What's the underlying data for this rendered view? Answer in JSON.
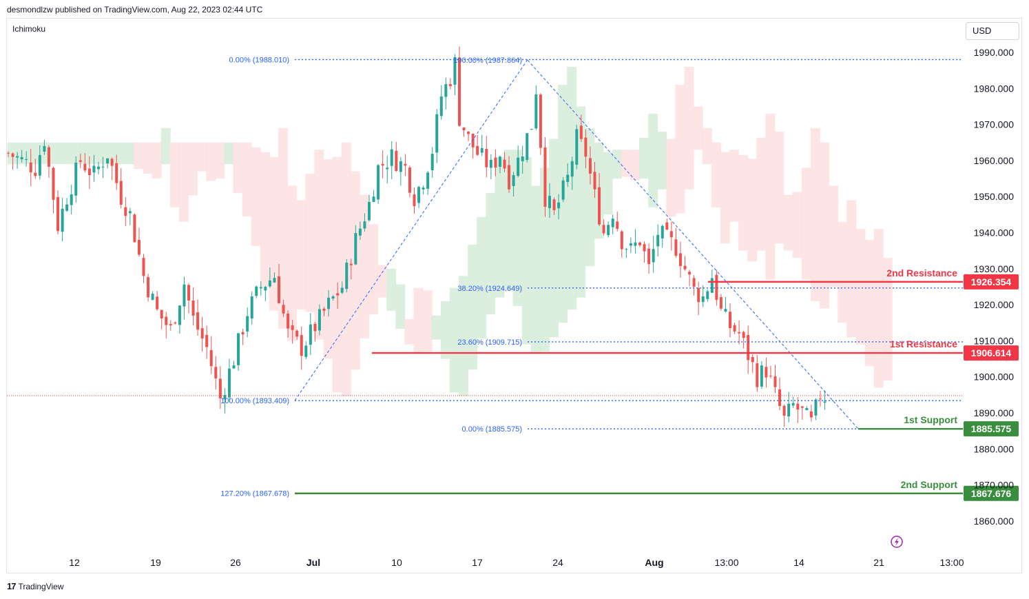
{
  "header": {
    "published_by": "desmondlzw published on TradingView.com, Aug 22, 2023 02:44 UTC",
    "indicator": "Ichimoku",
    "currency": "USD",
    "footer_brand": "TradingView",
    "footer_logo": "17"
  },
  "chart_data": {
    "type": "candlestick",
    "title": "",
    "ylabel": "USD",
    "ylim": [
      1853,
      1998
    ],
    "y_ticks": [
      1990,
      1980,
      1970,
      1960,
      1950,
      1940,
      1930,
      1920,
      1910,
      1900,
      1890,
      1880,
      1870,
      1860
    ],
    "y_tick_labels": [
      "1990.000",
      "1980.000",
      "1970.000",
      "1960.000",
      "1950.000",
      "1940.000",
      "1930.000",
      "1920.000",
      "1910.000",
      "1900.000",
      "1890.000",
      "1880.000",
      "1870.000",
      "1860.000"
    ],
    "x_ticks": [
      {
        "label": "12",
        "bold": false
      },
      {
        "label": "19",
        "bold": false
      },
      {
        "label": "26",
        "bold": false
      },
      {
        "label": "Jul",
        "bold": true
      },
      {
        "label": "10",
        "bold": false
      },
      {
        "label": "17",
        "bold": false
      },
      {
        "label": "24",
        "bold": false
      },
      {
        "label": "Aug",
        "bold": true
      },
      {
        "label": "13:00",
        "bold": false
      },
      {
        "label": "14",
        "bold": false
      },
      {
        "label": "21",
        "bold": false
      },
      {
        "label": "13:00",
        "bold": false
      }
    ],
    "price_path": [
      [
        0,
        1962
      ],
      [
        6,
        1958
      ],
      [
        8,
        1966
      ],
      [
        11,
        1942
      ],
      [
        13,
        1950
      ],
      [
        16,
        1960
      ],
      [
        19,
        1956
      ],
      [
        22,
        1962
      ],
      [
        25,
        1950
      ],
      [
        27,
        1945
      ],
      [
        30,
        1928
      ],
      [
        33,
        1918
      ],
      [
        36,
        1913
      ],
      [
        39,
        1926
      ],
      [
        41,
        1916
      ],
      [
        44,
        1908
      ],
      [
        47,
        1894
      ],
      [
        50,
        1905
      ],
      [
        53,
        1918
      ],
      [
        56,
        1925
      ],
      [
        59,
        1928
      ],
      [
        62,
        1912
      ],
      [
        65,
        1908
      ],
      [
        68,
        1914
      ],
      [
        71,
        1920
      ],
      [
        74,
        1925
      ],
      [
        77,
        1938
      ],
      [
        80,
        1948
      ],
      [
        82,
        1958
      ],
      [
        85,
        1961
      ],
      [
        88,
        1958
      ],
      [
        90,
        1950
      ],
      [
        92,
        1955
      ],
      [
        94,
        1963
      ],
      [
        96,
        1978
      ],
      [
        98,
        1983
      ],
      [
        99,
        1987
      ],
      [
        100,
        1972
      ],
      [
        102,
        1966
      ],
      [
        104,
        1962
      ],
      [
        107,
        1958
      ],
      [
        109,
        1962
      ],
      [
        111,
        1955
      ],
      [
        113,
        1960
      ],
      [
        116,
        1970
      ],
      [
        117,
        1980
      ],
      [
        119,
        1950
      ],
      [
        121,
        1945
      ],
      [
        124,
        1955
      ],
      [
        126,
        1966
      ],
      [
        128,
        1962
      ],
      [
        130,
        1950
      ],
      [
        132,
        1940
      ],
      [
        134,
        1946
      ],
      [
        136,
        1938
      ],
      [
        138,
        1935
      ],
      [
        140,
        1938
      ],
      [
        142,
        1930
      ],
      [
        144,
        1940
      ],
      [
        146,
        1938
      ],
      [
        148,
        1936
      ],
      [
        150,
        1930
      ],
      [
        152,
        1924
      ],
      [
        154,
        1922
      ],
      [
        156,
        1928
      ],
      [
        158,
        1918
      ],
      [
        160,
        1914
      ],
      [
        162,
        1912
      ],
      [
        164,
        1906
      ],
      [
        166,
        1900
      ],
      [
        168,
        1902
      ],
      [
        170,
        1895
      ],
      [
        172,
        1888
      ],
      [
        174,
        1892
      ],
      [
        176,
        1890
      ],
      [
        178,
        1887
      ],
      [
        180,
        1895
      ],
      [
        182,
        1894
      ]
    ],
    "ichimoku_cloud_note": "bullish cloud (green) and bearish cloud (red) bands",
    "fibonacci_1": [
      {
        "label": "0.00% (1988.010)",
        "value": 1988.01
      },
      {
        "label": "100.00% (1893.409)",
        "value": 1893.409
      },
      {
        "label": "127.20% (1867.678)",
        "value": 1867.678
      }
    ],
    "fibonacci_2": [
      {
        "label": "100.00% (1987.864)",
        "value": 1987.864
      },
      {
        "label": "38.20% (1924.649)",
        "value": 1924.649
      },
      {
        "label": "23.60% (1909.715)",
        "value": 1909.715
      },
      {
        "label": "0.00% (1885.575)",
        "value": 1885.575
      }
    ],
    "levels": [
      {
        "name": "2nd Resistance",
        "value": 1926.354,
        "badge": "1926.354",
        "color": "#f23645"
      },
      {
        "name": "1st Resistance",
        "value": 1906.614,
        "badge": "1906.614",
        "color": "#f23645"
      },
      {
        "name": "1st Support",
        "value": 1885.575,
        "badge": "1885.575",
        "color": "#388e3c"
      },
      {
        "name": "2nd Support",
        "value": 1867.676,
        "badge": "1867.676",
        "color": "#388e3c"
      }
    ],
    "colors": {
      "up": "#26a69a",
      "down": "#ef5350",
      "bull_cloud": "#d6ecd9",
      "bear_cloud": "#fde0e0",
      "fib": "#2962ff",
      "lightning": "#9c27b0"
    }
  }
}
